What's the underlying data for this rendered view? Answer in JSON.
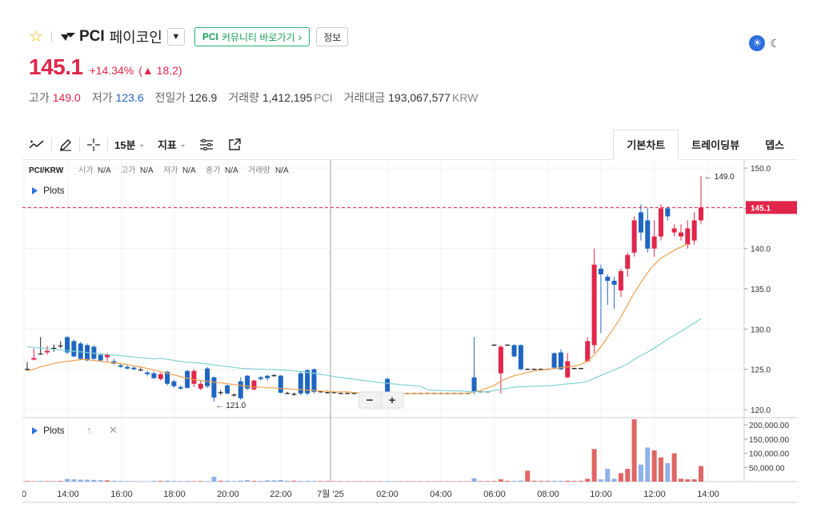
{
  "header": {
    "symbol": "PCI",
    "korean_name": "페이코인",
    "community_bold": "PCI",
    "community_rest": "커뮤니티 바로가기",
    "community_chevron": "›",
    "info_label": "정보",
    "dropdown_glyph": "▼",
    "star_glyph": "☆",
    "sun_glyph": "☀",
    "moon_glyph": "☾"
  },
  "price": {
    "current": "145.1",
    "change_pct": "+14.34%",
    "change_abs": "▲ 18.2"
  },
  "stats": [
    {
      "label": "고가",
      "value": "149.0",
      "dir": "up",
      "unit": ""
    },
    {
      "label": "저가",
      "value": "123.6",
      "dir": "down",
      "unit": ""
    },
    {
      "label": "전일가",
      "value": "126.9",
      "dir": "",
      "unit": ""
    },
    {
      "label": "거래량",
      "value": "1,412,195",
      "dir": "",
      "unit": "PCI"
    },
    {
      "label": "거래대금",
      "value": "193,067,577",
      "dir": "",
      "unit": "KRW"
    }
  ],
  "toolbar": {
    "interval": "15분",
    "indicator": "지표",
    "chevron": "⌄",
    "tabs": [
      "기본차트",
      "트레이딩뷰",
      "뎁스"
    ]
  },
  "chart_data": {
    "type": "candlestick",
    "pair_label": "PCI/KRW",
    "ohlc_legend": [
      {
        "label": "시가",
        "value": "N/A"
      },
      {
        "label": "고가",
        "value": "N/A"
      },
      {
        "label": "저가",
        "value": "N/A"
      },
      {
        "label": "종가",
        "value": "N/A"
      },
      {
        "label": "거래량",
        "value": "N/A"
      }
    ],
    "plots_label": "Plots",
    "x_ticks": [
      "0",
      "14:00",
      "16:00",
      "18:00",
      "20:00",
      "22:00",
      "7월 '25",
      "02:00",
      "04:00",
      "06:00",
      "08:00",
      "10:00",
      "12:00",
      "14:00"
    ],
    "price_axis": {
      "ylim": [
        119,
        151
      ],
      "ticks": [
        "150.0",
        "145.0",
        "140.0",
        "135.0",
        "130.0",
        "125.0",
        "120.0"
      ]
    },
    "volume_axis": {
      "ylim": [
        0,
        220000
      ],
      "ticks": [
        "200,000.00",
        "150,000.00",
        "100,000.00",
        "50,000.00"
      ]
    },
    "current_price_label": "145.1",
    "current_price": 145.1,
    "high_marker": {
      "value": 149.0,
      "label": "← 149.0"
    },
    "low_marker": {
      "value": 121.0,
      "label": "← 121.0"
    },
    "zoom_minus": "−",
    "zoom_plus": "+",
    "candles": [
      [
        125.0,
        125.9,
        124.8,
        125.0,
        2000
      ],
      [
        126.2,
        127.6,
        126.1,
        126.4,
        1500
      ],
      [
        127.0,
        129.0,
        126.8,
        126.9,
        2500
      ],
      [
        127.1,
        127.9,
        126.8,
        127.3,
        1800
      ],
      [
        127.5,
        128.1,
        127.2,
        127.6,
        1600
      ],
      [
        127.8,
        128.5,
        127.6,
        127.9,
        2200
      ],
      [
        129.0,
        129.1,
        126.9,
        127.1,
        9000
      ],
      [
        128.5,
        128.7,
        126.5,
        126.6,
        8000
      ],
      [
        128.2,
        128.4,
        126.2,
        126.3,
        7000
      ],
      [
        128.0,
        128.2,
        126.0,
        126.1,
        6500
      ],
      [
        127.8,
        128.0,
        126.2,
        126.3,
        6000
      ],
      [
        126.8,
        127.0,
        126.0,
        126.1,
        5000
      ],
      [
        126.5,
        127.0,
        126.0,
        126.8,
        4500
      ],
      [
        126.0,
        126.3,
        125.6,
        125.7,
        3000
      ],
      [
        125.5,
        125.7,
        125.2,
        125.3,
        2500
      ],
      [
        125.3,
        125.5,
        125.0,
        125.1,
        2000
      ],
      [
        125.2,
        125.4,
        124.9,
        125.0,
        1800
      ],
      [
        125.0,
        125.2,
        124.8,
        124.9,
        1500
      ],
      [
        124.6,
        124.8,
        124.2,
        124.4,
        1500
      ],
      [
        124.5,
        124.7,
        123.8,
        123.9,
        3000
      ],
      [
        123.8,
        124.6,
        123.6,
        124.4,
        2500
      ],
      [
        124.7,
        124.8,
        123.0,
        123.2,
        3500
      ],
      [
        123.5,
        123.7,
        122.7,
        122.9,
        2500
      ],
      [
        122.8,
        123.0,
        122.5,
        122.6,
        2000
      ],
      [
        124.8,
        124.9,
        122.6,
        122.7,
        2500
      ],
      [
        123.2,
        125.0,
        122.8,
        124.8,
        1800
      ],
      [
        122.6,
        123.6,
        122.4,
        123.2,
        2000
      ],
      [
        125.1,
        125.3,
        122.7,
        122.9,
        1800
      ],
      [
        124.0,
        124.1,
        121.0,
        121.5,
        17000
      ],
      [
        122.0,
        122.4,
        121.8,
        122.1,
        3000
      ],
      [
        123.0,
        123.1,
        121.9,
        122.0,
        3000
      ],
      [
        121.9,
        122.0,
        121.6,
        121.8,
        2000
      ],
      [
        123.5,
        124.0,
        121.2,
        121.4,
        3500
      ],
      [
        124.2,
        124.3,
        122.4,
        122.6,
        5000
      ],
      [
        122.5,
        123.7,
        122.4,
        123.6,
        2500
      ],
      [
        124.0,
        124.2,
        123.6,
        123.8,
        2500
      ],
      [
        124.2,
        124.3,
        123.6,
        123.9,
        4500
      ],
      [
        124.3,
        124.4,
        124.1,
        124.2,
        4500
      ],
      [
        124.2,
        124.3,
        122.0,
        122.1,
        5500
      ],
      [
        122.1,
        122.2,
        121.9,
        122.0,
        3000
      ],
      [
        121.9,
        122.1,
        121.7,
        121.9,
        3000
      ],
      [
        124.5,
        124.7,
        121.8,
        122.0,
        2500
      ],
      [
        124.9,
        125.0,
        121.8,
        122.0,
        3000
      ],
      [
        125.0,
        125.1,
        122.0,
        122.2,
        2500
      ],
      [
        122.2,
        122.3,
        122.1,
        122.2,
        2000
      ],
      [
        122.1,
        122.2,
        122.0,
        122.1,
        1800
      ],
      [
        122.1,
        122.2,
        122.0,
        122.1,
        1800
      ],
      [
        122.0,
        122.1,
        121.9,
        122.0,
        1500
      ],
      [
        122.0,
        122.1,
        121.9,
        122.0,
        1500
      ],
      [
        122.0,
        122.1,
        121.9,
        122.0,
        1500
      ],
      [
        122.0,
        122.1,
        121.9,
        122.0,
        1500
      ],
      [
        122.0,
        122.1,
        121.9,
        122.0,
        1500
      ],
      [
        122.0,
        122.1,
        121.9,
        122.0,
        1500
      ],
      [
        122.0,
        122.1,
        121.9,
        122.0,
        1500
      ],
      [
        123.8,
        124.0,
        122.0,
        122.1,
        2000
      ],
      [
        122.1,
        122.2,
        121.9,
        122.0,
        1500
      ],
      [
        122.0,
        122.1,
        121.9,
        122.0,
        1500
      ],
      [
        122.0,
        122.1,
        121.9,
        122.0,
        1500
      ],
      [
        122.0,
        122.1,
        121.9,
        122.0,
        1500
      ],
      [
        122.0,
        122.1,
        121.9,
        122.0,
        1500
      ],
      [
        122.0,
        122.1,
        121.9,
        122.0,
        1500
      ],
      [
        122.0,
        122.1,
        121.9,
        122.0,
        1500
      ],
      [
        122.0,
        122.1,
        121.9,
        122.0,
        1500
      ],
      [
        122.0,
        122.1,
        121.9,
        122.0,
        1500
      ],
      [
        122.0,
        122.1,
        121.9,
        122.0,
        1500
      ],
      [
        122.0,
        122.1,
        121.9,
        122.0,
        1500
      ],
      [
        122.0,
        122.1,
        121.9,
        122.0,
        1500
      ],
      [
        124.0,
        129.0,
        121.9,
        122.2,
        12000
      ],
      [
        122.2,
        122.3,
        122.1,
        122.2,
        2000
      ],
      [
        122.2,
        122.3,
        122.1,
        122.2,
        2000
      ],
      [
        128.0,
        128.1,
        127.9,
        128.0,
        2000
      ],
      [
        124.5,
        128.0,
        122.0,
        127.8,
        8000
      ],
      [
        128.0,
        128.1,
        127.9,
        128.0,
        3000
      ],
      [
        128.0,
        128.1,
        126.5,
        126.6,
        2500
      ],
      [
        128.0,
        128.1,
        124.9,
        125.0,
        3500
      ],
      [
        125.0,
        125.1,
        124.9,
        125.0,
        38000
      ],
      [
        125.0,
        125.1,
        124.9,
        125.0,
        3000
      ],
      [
        125.0,
        125.1,
        124.9,
        125.0,
        2500
      ],
      [
        125.0,
        125.1,
        124.9,
        125.0,
        2500
      ],
      [
        127.0,
        127.1,
        125.0,
        125.2,
        3000
      ],
      [
        127.1,
        127.5,
        124.9,
        125.0,
        3000
      ],
      [
        124.0,
        127.0,
        123.9,
        126.0,
        3000
      ],
      [
        125.1,
        125.2,
        125.0,
        125.1,
        2500
      ],
      [
        125.1,
        125.2,
        125.0,
        125.1,
        2500
      ],
      [
        126.0,
        129.0,
        125.9,
        128.5,
        10000
      ],
      [
        128.0,
        140.0,
        127.0,
        138.0,
        115000
      ],
      [
        137.5,
        138.0,
        129.5,
        136.8,
        8000
      ],
      [
        136.5,
        136.8,
        133.0,
        136.0,
        45000
      ],
      [
        136.0,
        136.5,
        132.5,
        135.5,
        10000
      ],
      [
        134.8,
        137.5,
        134.0,
        137.2,
        30000
      ],
      [
        137.5,
        139.5,
        136.5,
        139.2,
        45000
      ],
      [
        139.5,
        144.0,
        139.0,
        143.5,
        220000
      ],
      [
        144.5,
        145.5,
        141.0,
        142.0,
        60000
      ],
      [
        143.5,
        145.0,
        139.5,
        140.0,
        120000
      ],
      [
        140.0,
        143.5,
        139.0,
        141.5,
        110000
      ],
      [
        141.5,
        145.5,
        141.0,
        145.0,
        85000
      ],
      [
        145.0,
        145.2,
        143.5,
        144.0,
        65000
      ],
      [
        142.0,
        143.0,
        141.5,
        142.5,
        100000
      ],
      [
        141.5,
        143.0,
        141.0,
        142.0,
        10000
      ],
      [
        140.5,
        143.5,
        140.0,
        142.5,
        8000
      ],
      [
        141.0,
        144.5,
        140.5,
        143.5,
        8000
      ],
      [
        143.5,
        149.0,
        143.0,
        145.1,
        55000
      ]
    ],
    "ma_fast": [
      124.8,
      125.0,
      125.3,
      125.5,
      125.7,
      125.9,
      126.0,
      126.1,
      126.2,
      126.2,
      126.1,
      126.0,
      125.9,
      125.8,
      125.7,
      125.6,
      125.4,
      125.3,
      125.1,
      124.9,
      124.7,
      124.5,
      124.3,
      124.1,
      123.9,
      123.7,
      123.6,
      123.5,
      123.4,
      123.3,
      123.2,
      123.1,
      123.0,
      122.9,
      122.8,
      122.8,
      122.7,
      122.7,
      122.6,
      122.6,
      122.5,
      122.5,
      122.4,
      122.4,
      122.3,
      122.3,
      122.2,
      122.2,
      122.2,
      122.1,
      122.1,
      122.1,
      122.0,
      122.0,
      122.0,
      122.0,
      122.0,
      122.0,
      122.0,
      122.0,
      122.0,
      122.0,
      122.0,
      122.0,
      122.0,
      122.0,
      122.0,
      122.2,
      122.4,
      122.7,
      123.0,
      123.5,
      123.9,
      124.2,
      124.4,
      124.6,
      124.8,
      124.9,
      125.0,
      125.1,
      125.2,
      125.3,
      125.4,
      125.6,
      126.0,
      126.8,
      127.8,
      129.0,
      130.2,
      131.5,
      133.0,
      134.5,
      135.8,
      137.0,
      138.0,
      138.8,
      139.3,
      139.8,
      140.2,
      140.6
    ]
  },
  "volume_pane": {
    "plots_label": "Plots",
    "up_glyph": "↑",
    "close_glyph": "✕"
  }
}
